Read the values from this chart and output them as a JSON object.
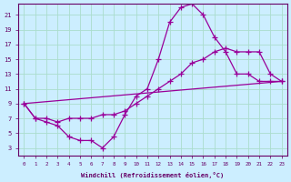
{
  "xlabel": "Windchill (Refroidissement éolien,°C)",
  "bg_color": "#cceeff",
  "grid_color": "#aaddcc",
  "line_color": "#990099",
  "x_ticks": [
    0,
    1,
    2,
    3,
    4,
    5,
    6,
    7,
    8,
    9,
    10,
    11,
    12,
    13,
    14,
    15,
    16,
    17,
    18,
    19,
    20,
    21,
    22,
    23
  ],
  "y_ticks": [
    3,
    5,
    7,
    9,
    11,
    13,
    15,
    17,
    19,
    21
  ],
  "xlim": [
    -0.5,
    23.5
  ],
  "ylim": [
    2,
    22.5
  ],
  "line1_x": [
    0,
    1,
    2,
    3,
    4,
    5,
    6,
    7,
    8,
    9,
    10,
    11,
    12,
    13,
    14,
    15,
    16,
    17,
    18,
    19,
    20,
    21,
    22,
    23
  ],
  "line1_y": [
    9,
    7,
    6.5,
    6,
    4.5,
    4,
    4,
    3,
    4.5,
    7.5,
    10,
    11,
    15,
    20,
    22,
    22.5,
    21,
    18,
    16,
    13,
    13,
    12,
    12,
    12
  ],
  "line2_x": [
    0,
    1,
    2,
    3,
    4,
    5,
    6,
    7,
    8,
    9,
    10,
    11,
    12,
    13,
    14,
    15,
    16,
    17,
    18,
    19,
    20,
    21,
    22,
    23
  ],
  "line2_y": [
    9,
    7,
    7,
    6.5,
    7,
    7,
    7,
    7.5,
    7.5,
    8,
    9,
    10,
    11,
    12,
    13,
    14.5,
    15,
    16,
    16.5,
    16,
    16,
    16,
    13,
    12
  ],
  "line3_x": [
    0,
    23
  ],
  "line3_y": [
    9,
    12
  ]
}
